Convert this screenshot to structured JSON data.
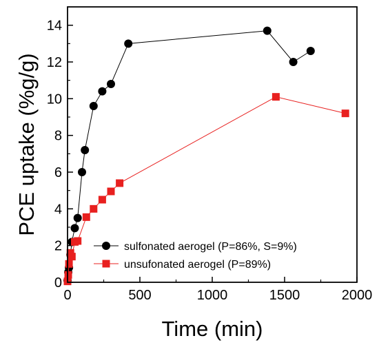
{
  "chart_data": {
    "type": "scatter",
    "xlabel": "Time (min)",
    "ylabel": "PCE uptake (%g/g)",
    "xlim": [
      0,
      2000
    ],
    "ylim": [
      0,
      15
    ],
    "xticks": [
      0,
      500,
      1000,
      1500,
      2000
    ],
    "yticks": [
      0,
      2,
      4,
      6,
      8,
      10,
      12,
      14
    ],
    "grid": false,
    "legend_position": "bottom-right",
    "series": [
      {
        "name": "sulfonated aerogel (P=86%, S=9%)",
        "color": "#000000",
        "marker": "circle",
        "points": [
          [
            0,
            0.1
          ],
          [
            5,
            0.55
          ],
          [
            10,
            0.8
          ],
          [
            20,
            1.5
          ],
          [
            30,
            2.2
          ],
          [
            50,
            2.95
          ],
          [
            70,
            3.5
          ],
          [
            100,
            6.0
          ],
          [
            120,
            7.2
          ],
          [
            180,
            9.6
          ],
          [
            240,
            10.4
          ],
          [
            300,
            10.8
          ],
          [
            420,
            13.0
          ],
          [
            1380,
            13.7
          ],
          [
            1560,
            12.0
          ],
          [
            1680,
            12.6
          ]
        ]
      },
      {
        "name": "unsufonated aerogel (P=89%)",
        "color": "#e8201f",
        "marker": "square",
        "points": [
          [
            0,
            0.05
          ],
          [
            5,
            0.4
          ],
          [
            10,
            1.0
          ],
          [
            20,
            1.6
          ],
          [
            30,
            1.4
          ],
          [
            50,
            2.2
          ],
          [
            70,
            2.25
          ],
          [
            130,
            3.55
          ],
          [
            180,
            4.0
          ],
          [
            240,
            4.5
          ],
          [
            300,
            4.95
          ],
          [
            360,
            5.4
          ],
          [
            1440,
            10.1
          ],
          [
            1920,
            9.2
          ]
        ]
      }
    ]
  }
}
